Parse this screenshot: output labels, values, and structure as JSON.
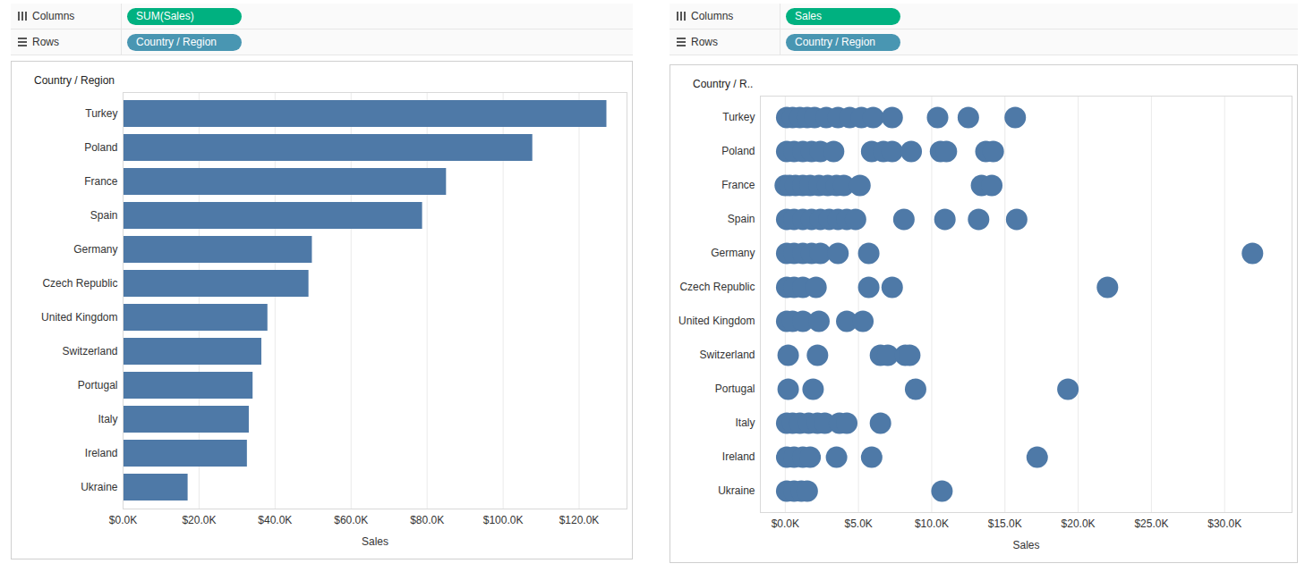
{
  "chart_data": [
    {
      "type": "bar",
      "orientation": "horizontal",
      "shelves": [
        {
          "label": "Columns",
          "pill": "SUM(Sales)",
          "color": "#00b180"
        },
        {
          "label": "Rows",
          "pill": "Country / Region",
          "color": "#4996b2"
        }
      ],
      "row_header": "Country / Region",
      "xlabel": "Sales",
      "categories": [
        "Turkey",
        "Poland",
        "France",
        "Spain",
        "Germany",
        "Czech Republic",
        "United Kingdom",
        "Switzerland",
        "Portugal",
        "Italy",
        "Ireland",
        "Ukraine"
      ],
      "values": [
        127300,
        107800,
        85100,
        78800,
        49800,
        48900,
        38100,
        36500,
        34200,
        33200,
        32700,
        17100
      ],
      "color": "#4e79a7",
      "xlim": [
        0,
        132600
      ],
      "xticks": [
        {
          "value": 0,
          "label": "$0.0K"
        },
        {
          "value": 20000,
          "label": "$20.0K"
        },
        {
          "value": 40000,
          "label": "$40.0K"
        },
        {
          "value": 60000,
          "label": "$60.0K"
        },
        {
          "value": 80000,
          "label": "$80.0K"
        },
        {
          "value": 100000,
          "label": "$100.0K"
        },
        {
          "value": 120000,
          "label": "$120.0K"
        }
      ],
      "grid": true
    },
    {
      "type": "scatter",
      "shelves": [
        {
          "label": "Columns",
          "pill": "Sales",
          "color": "#00b180"
        },
        {
          "label": "Rows",
          "pill": "Country / Region",
          "color": "#4996b2"
        }
      ],
      "row_header": "Country / R..",
      "xlabel": "Sales",
      "categories": [
        "Turkey",
        "Poland",
        "France",
        "Spain",
        "Germany",
        "Czech Republic",
        "United Kingdom",
        "Switzerland",
        "Portugal",
        "Italy",
        "Ireland",
        "Ukraine"
      ],
      "values": [
        [
          100,
          500,
          1000,
          1500,
          2000,
          2800,
          3600,
          4400,
          5200,
          6000,
          7300,
          10400,
          12500,
          15700
        ],
        [
          100,
          600,
          1200,
          1800,
          2400,
          3300,
          5900,
          6700,
          7300,
          8600,
          10600,
          11000,
          13700,
          14200
        ],
        [
          0,
          300,
          700,
          1200,
          1700,
          2300,
          2900,
          3500,
          4000,
          5100,
          13400,
          14100
        ],
        [
          100,
          600,
          1200,
          1800,
          2400,
          3000,
          3600,
          4200,
          4800,
          8100,
          10900,
          13200,
          15800
        ],
        [
          100,
          600,
          1200,
          1800,
          2400,
          3600,
          5700,
          31900
        ],
        [
          100,
          600,
          1200,
          2100,
          5700,
          7300,
          22000
        ],
        [
          100,
          500,
          1200,
          2300,
          4200,
          5300
        ],
        [
          200,
          2200,
          6500,
          7000,
          8200,
          8500
        ],
        [
          200,
          1900,
          8900,
          19300
        ],
        [
          100,
          500,
          1000,
          1600,
          2200,
          2700,
          3700,
          4200,
          6500
        ],
        [
          100,
          600,
          1200,
          1700,
          3500,
          5900,
          17200
        ],
        [
          100,
          600,
          1100,
          1500,
          10700
        ]
      ],
      "color": "#4e79a7",
      "xlim": [
        -1700,
        34600
      ],
      "xticks": [
        {
          "value": 0,
          "label": "$0.0K"
        },
        {
          "value": 5000,
          "label": "$5.0K"
        },
        {
          "value": 10000,
          "label": "$10.0K"
        },
        {
          "value": 15000,
          "label": "$15.0K"
        },
        {
          "value": 20000,
          "label": "$20.0K"
        },
        {
          "value": 25000,
          "label": "$25.0K"
        },
        {
          "value": 30000,
          "label": "$30.0K"
        }
      ],
      "grid": true
    }
  ]
}
